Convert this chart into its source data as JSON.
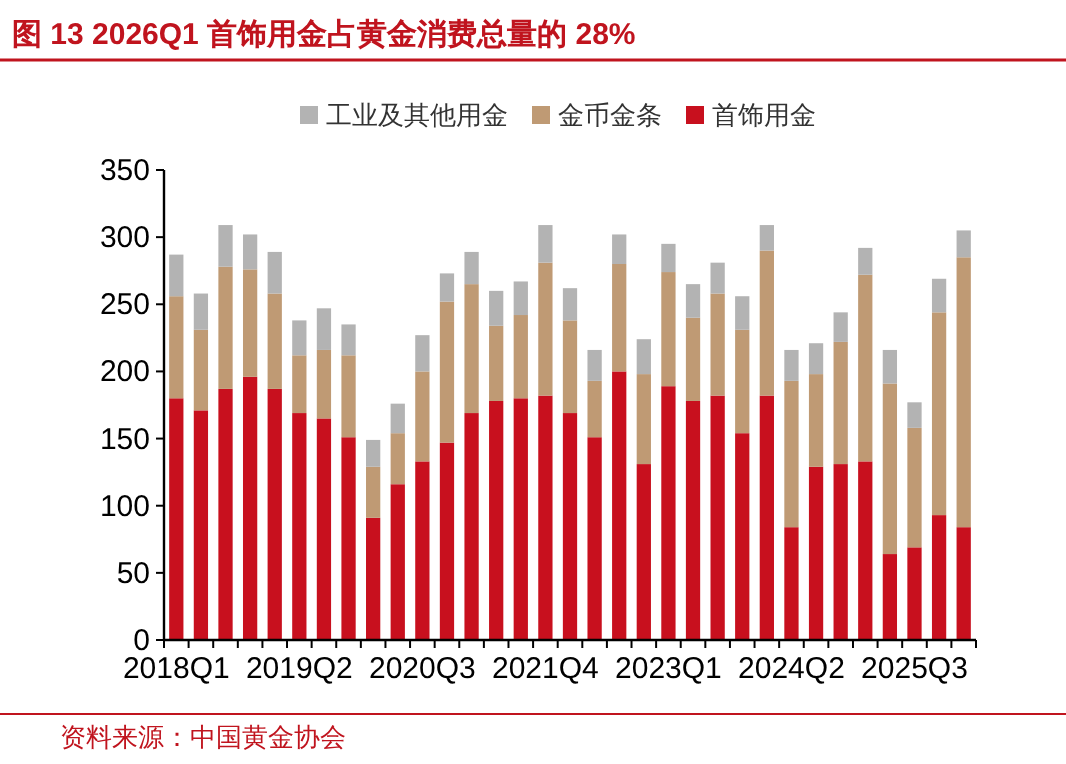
{
  "chart_data": {
    "type": "bar",
    "stacked": true,
    "title": "图 13   2026Q1 首饰用金占黄金消费总量的 28%",
    "categories": [
      "2018Q1",
      null,
      null,
      null,
      null,
      "2019Q2",
      null,
      null,
      null,
      null,
      "2020Q3",
      null,
      null,
      null,
      null,
      "2021Q4",
      null,
      null,
      null,
      null,
      "2023Q1",
      null,
      null,
      null,
      null,
      "2024Q2",
      null,
      null,
      null,
      null,
      "2025Q3",
      null,
      null
    ],
    "series": [
      {
        "name": "首饰用金",
        "color": "#c8101e",
        "values": [
          180,
          171,
          187,
          196,
          187,
          169,
          165,
          151,
          91,
          116,
          133,
          147,
          169,
          178,
          180,
          182,
          169,
          151,
          200,
          131,
          189,
          178,
          182,
          154,
          182,
          84,
          129,
          131,
          133,
          64,
          69,
          93,
          84
        ]
      },
      {
        "name": "金币金条",
        "color": "#bf9a74",
        "values": [
          76,
          60,
          91,
          80,
          71,
          43,
          51,
          61,
          38,
          38,
          67,
          105,
          96,
          56,
          62,
          99,
          69,
          42,
          80,
          67,
          85,
          62,
          76,
          77,
          108,
          109,
          69,
          91,
          139,
          127,
          89,
          151,
          201
        ]
      },
      {
        "name": "工业及其他用金",
        "color": "#b3b3b3",
        "values": [
          31,
          27,
          31,
          26,
          31,
          26,
          31,
          23,
          20,
          22,
          27,
          21,
          24,
          26,
          25,
          28,
          24,
          23,
          22,
          26,
          21,
          25,
          23,
          25,
          19,
          23,
          23,
          22,
          20,
          25,
          19,
          25,
          20
        ]
      }
    ],
    "ylim": [
      0,
      350
    ],
    "yticks": [
      0,
      50,
      100,
      150,
      200,
      250,
      300,
      350
    ],
    "grid": false,
    "legend": "top",
    "annotations": [
      "资料来源：中国黄金协会"
    ]
  }
}
